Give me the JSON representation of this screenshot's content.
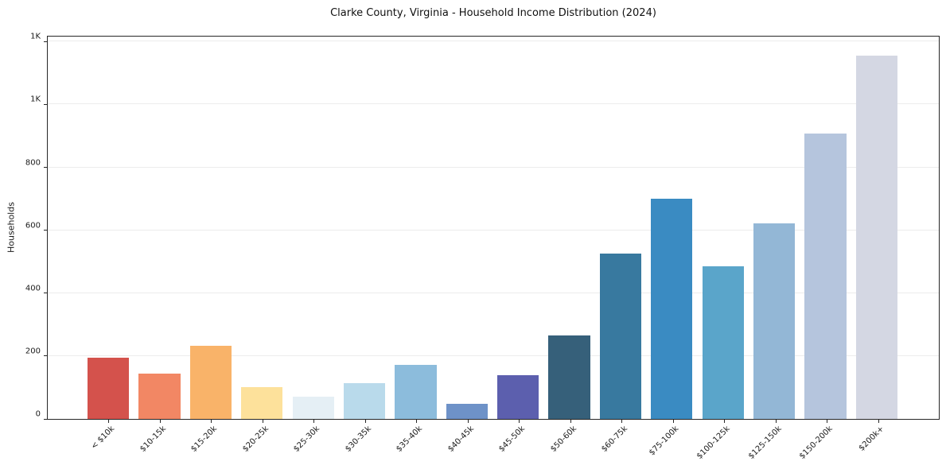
{
  "figure": {
    "background": "#ffffff",
    "axis_color": "#262626",
    "grid_color": "#ececec",
    "text_color": "#1a1a1a"
  },
  "chart_data": {
    "type": "bar",
    "title": "Clarke County, Virginia - Household Income Distribution (2024)",
    "xlabel": "",
    "ylabel": "Households",
    "legend": "none",
    "grid": "horizontal",
    "ylim": [
      0,
      1216
    ],
    "yticks": [
      {
        "value": 0,
        "label": "0"
      },
      {
        "value": 200,
        "label": "200"
      },
      {
        "value": 400,
        "label": "400"
      },
      {
        "value": 600,
        "label": "600"
      },
      {
        "value": 800,
        "label": "800"
      },
      {
        "value": 1000,
        "label": "1K"
      },
      {
        "value": 1200,
        "label": "1K"
      }
    ],
    "categories": [
      "< $10k",
      "$10-15k",
      "$15-20k",
      "$20-25k",
      "$25-30k",
      "$30-35k",
      "$35-40k",
      "$40-45k",
      "$45-50k",
      "$50-60k",
      "$60-75k",
      "$75-100k",
      "$100-125k",
      "$125-150k",
      "$150-200k",
      "$200k+"
    ],
    "values": [
      195,
      145,
      232,
      101,
      71,
      114,
      172,
      49,
      140,
      265,
      525,
      700,
      485,
      622,
      908,
      1155
    ],
    "bar_colors": [
      "#d4524c",
      "#f28764",
      "#f9b369",
      "#fde19b",
      "#e5eff5",
      "#b9daeb",
      "#8cbcdc",
      "#6e92c8",
      "#5c5fae",
      "#36607a",
      "#38799f",
      "#3a8bc2",
      "#5aa5ca",
      "#93b7d6",
      "#b5c5dd",
      "#d4d7e3"
    ]
  }
}
